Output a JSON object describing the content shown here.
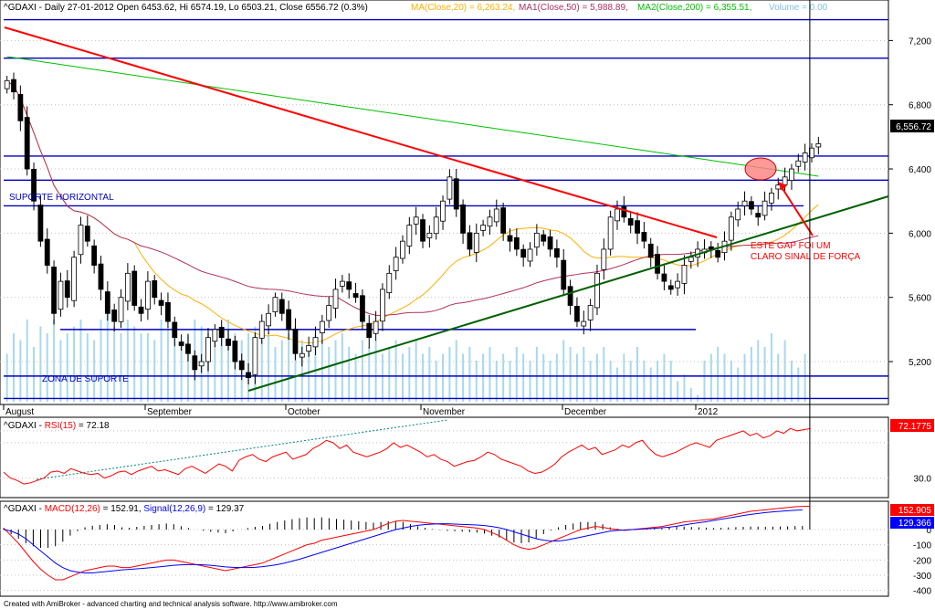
{
  "header": {
    "symbol_line": "^GDAXI - Daily 27-01-2012 Open 6453.62, Hi 6574.19, Lo 6503.21, Close 6556.72 (0.3%)",
    "ma20": "MA(Close,20) = 6,263.24,",
    "ma50": "MA1(Close,50) = 5,988.89,",
    "ma200": "MA2(Close,200) = 6,355.51,",
    "volume": "Volume = 0.00"
  },
  "footer": {
    "credit": "Created with AmiBroker - advanced charting and technical analysis software. http://www.amibroker.com"
  },
  "colors": {
    "candle_up": "#ffffff",
    "candle_down": "#000000",
    "ma20": "#ffb000",
    "ma50": "#b03060",
    "ma200": "#00c000",
    "downtrend": "#ff0000",
    "uptrend": "#006000",
    "hline": "#0000c0",
    "volume": "#a8d8f0",
    "rsi": "#ff0000",
    "macd": "#ff0000",
    "signal": "#0000ff"
  },
  "chart_data": [
    {
      "type": "candlestick",
      "title": "^GDAXI - Daily",
      "x_months": [
        "August",
        "September",
        "October",
        "November",
        "December",
        "2012"
      ],
      "y_ticks": [
        5200,
        5600,
        6000,
        6400,
        6800,
        7200
      ],
      "ylim": [
        4950,
        7350
      ],
      "last_close_label": "6,556.72",
      "last_close": 6556.72,
      "horizontal_levels": [
        7330,
        7090,
        6480,
        6330,
        6170,
        5400,
        5110,
        4970
      ],
      "annotations": {
        "suporte_horizontal": "SUPORTE HORIZONTAL",
        "zona_suporte": "ZONA DE SUPORTE",
        "gap_note_1": "ESTE GAP FOI UM",
        "gap_note_2": "CLARO SINAL DE FORÇA"
      },
      "ohlc_close": [
        6950,
        6880,
        6700,
        6400,
        6200,
        5950,
        5800,
        5500,
        5700,
        5600,
        5850,
        6050,
        5950,
        5800,
        5650,
        5500,
        5450,
        5600,
        5750,
        5550,
        5500,
        5700,
        5600,
        5550,
        5450,
        5350,
        5300,
        5250,
        5150,
        5200,
        5350,
        5400,
        5350,
        5300,
        5200,
        5150,
        5100,
        5350,
        5450,
        5500,
        5600,
        5500,
        5400,
        5250,
        5250,
        5300,
        5350,
        5450,
        5550,
        5650,
        5700,
        5650,
        5600,
        5450,
        5350,
        5450,
        5650,
        5750,
        5850,
        5950,
        6050,
        6100,
        5950,
        6000,
        6100,
        6200,
        6350,
        6150,
        6000,
        5900,
        6000,
        6050,
        6100,
        6150,
        6000,
        5950,
        5900,
        5850,
        5900,
        6000,
        5950,
        5900,
        5850,
        5650,
        5550,
        5450,
        5450,
        5550,
        5750,
        5900,
        6100,
        6150,
        6100,
        6050,
        6000,
        5950,
        5850,
        5750,
        5700,
        5650,
        5700,
        5800,
        5850,
        5900,
        5900,
        5900,
        5850,
        5950,
        6100,
        6150,
        6200,
        6150,
        6100,
        6200,
        6250,
        6300,
        6350,
        6400,
        6450,
        6500,
        6530,
        6557
      ],
      "volume_rel": [
        0.35,
        0.5,
        0.45,
        0.6,
        0.4,
        0.55,
        0.5,
        0.6,
        0.45,
        0.5,
        0.55,
        0.6,
        0.5,
        0.45,
        0.6,
        0.65,
        0.55,
        0.5,
        0.6,
        0.55,
        0.5,
        0.5,
        0.45,
        0.6,
        0.55,
        0.5,
        0.45,
        0.5,
        0.6,
        0.55,
        0.5,
        0.45,
        0.55,
        0.6,
        0.5,
        0.45,
        0.5,
        0.55,
        0.45,
        0.5,
        0.4,
        0.45,
        0.5,
        0.55,
        0.45,
        0.4,
        0.5,
        0.45,
        0.4,
        0.45,
        0.5,
        0.4,
        0.35,
        0.45,
        0.4,
        0.45,
        0.35,
        0.4,
        0.45,
        0.35,
        0.4,
        0.45,
        0.35,
        0.4,
        0.3,
        0.35,
        0.4,
        0.45,
        0.35,
        0.4,
        0.3,
        0.35,
        0.4,
        0.3,
        0.35,
        0.3,
        0.4,
        0.35,
        0.3,
        0.4,
        0.35,
        0.3,
        0.35,
        0.45,
        0.4,
        0.35,
        0.4,
        0.3,
        0.35,
        0.4,
        0.3,
        0.25,
        0.35,
        0.3,
        0.4,
        0.3,
        0.25,
        0.3,
        0.35,
        0.3,
        0.15,
        0.2,
        0.1,
        0.05,
        0.3,
        0.35,
        0.4,
        0.35,
        0.3,
        0.25,
        0.35,
        0.4,
        0.45,
        0.4,
        0.5,
        0.35,
        0.45,
        0.3,
        0.25,
        0.35
      ]
    },
    {
      "type": "line",
      "title": "^GDAXI - RSI(15) = 72.18",
      "label_prefix": "^GDAXI - ",
      "label_name": "RSI(15)",
      "label_value": " = 72.18",
      "last_value_label": "72.1775",
      "y_ticks": [
        30
      ],
      "ylim": [
        15,
        80
      ],
      "values": [
        35,
        30,
        28,
        25,
        26,
        28,
        30,
        35,
        36,
        34,
        38,
        36,
        34,
        33,
        34,
        30,
        32,
        35,
        36,
        33,
        36,
        38,
        40,
        36,
        37,
        35,
        33,
        38,
        40,
        37,
        34,
        38,
        42,
        40,
        36,
        45,
        48,
        50,
        46,
        44,
        48,
        50,
        52,
        46,
        48,
        50,
        55,
        58,
        62,
        60,
        55,
        58,
        52,
        50,
        48,
        50,
        52,
        55,
        60,
        56,
        58,
        55,
        52,
        48,
        50,
        46,
        44,
        40,
        42,
        44,
        45,
        48,
        52,
        50,
        46,
        44,
        42,
        40,
        36,
        34,
        35,
        38,
        42,
        48,
        52,
        55,
        58,
        54,
        56,
        50,
        52,
        54,
        58,
        56,
        60,
        62,
        55,
        50,
        48,
        50,
        52,
        55,
        58,
        60,
        58,
        56,
        62,
        64,
        66,
        68,
        70,
        66,
        68,
        64,
        66,
        70,
        68,
        72,
        70,
        71,
        72
      ]
    },
    {
      "type": "line",
      "title": "^GDAXI - MACD(12,26) = 152.91, Signal(12,26,9) = 129.37",
      "macd_label": "MACD(12,26)",
      "macd_value": " = 152.91, ",
      "signal_label": "Signal(12,26,9)",
      "signal_value": " = 129.37",
      "macd_last_label": "152.905",
      "signal_last_label": "129.366",
      "y_ticks": [
        0,
        -100,
        -200,
        -300,
        -400
      ],
      "ylim": [
        -420,
        150
      ],
      "series": [
        {
          "name": "MACD(12,26)",
          "values": [
            10,
            -40,
            -90,
            -150,
            -210,
            -260,
            -300,
            -330,
            -330,
            -310,
            -290,
            -270,
            -260,
            -250,
            -240,
            -240,
            -250,
            -250,
            -240,
            -230,
            -220,
            -210,
            -200,
            -200,
            -210,
            -220,
            -230,
            -240,
            -250,
            -260,
            -270,
            -260,
            -250,
            -240,
            -230,
            -220,
            -200,
            -180,
            -160,
            -140,
            -120,
            -100,
            -90,
            -70,
            -60,
            -50,
            -40,
            -30,
            -20,
            -10,
            0,
            20,
            40,
            55,
            60,
            55,
            50,
            45,
            40,
            35,
            30,
            25,
            20,
            15,
            10,
            0,
            -20,
            -40,
            -70,
            -100,
            -120,
            -130,
            -120,
            -100,
            -80,
            -60,
            -40,
            -20,
            0,
            10,
            20,
            15,
            5,
            0,
            -5,
            0,
            5,
            10,
            15,
            20,
            30,
            40,
            50,
            55,
            60,
            65,
            70,
            80,
            90,
            100,
            110,
            120,
            125,
            130,
            135,
            140,
            145,
            150,
            152,
            153
          ]
        },
        {
          "name": "Signal(12,26,9)",
          "values": [
            0,
            -10,
            -30,
            -60,
            -100,
            -140,
            -180,
            -220,
            -250,
            -270,
            -280,
            -285,
            -285,
            -280,
            -275,
            -270,
            -265,
            -262,
            -258,
            -254,
            -250,
            -245,
            -240,
            -235,
            -232,
            -230,
            -230,
            -232,
            -235,
            -240,
            -245,
            -248,
            -250,
            -250,
            -248,
            -244,
            -238,
            -230,
            -220,
            -208,
            -195,
            -180,
            -165,
            -150,
            -135,
            -120,
            -105,
            -90,
            -75,
            -60,
            -45,
            -30,
            -15,
            0,
            10,
            20,
            28,
            33,
            36,
            38,
            38,
            36,
            34,
            32,
            30,
            26,
            20,
            12,
            0,
            -15,
            -30,
            -45,
            -60,
            -70,
            -75,
            -75,
            -70,
            -60,
            -50,
            -40,
            -30,
            -20,
            -10,
            -5,
            -2,
            0,
            2,
            5,
            8,
            12,
            16,
            22,
            30,
            38,
            45,
            52,
            60,
            68,
            76,
            84,
            92,
            100,
            106,
            112,
            116,
            120,
            124,
            127,
            129
          ]
        }
      ]
    }
  ]
}
